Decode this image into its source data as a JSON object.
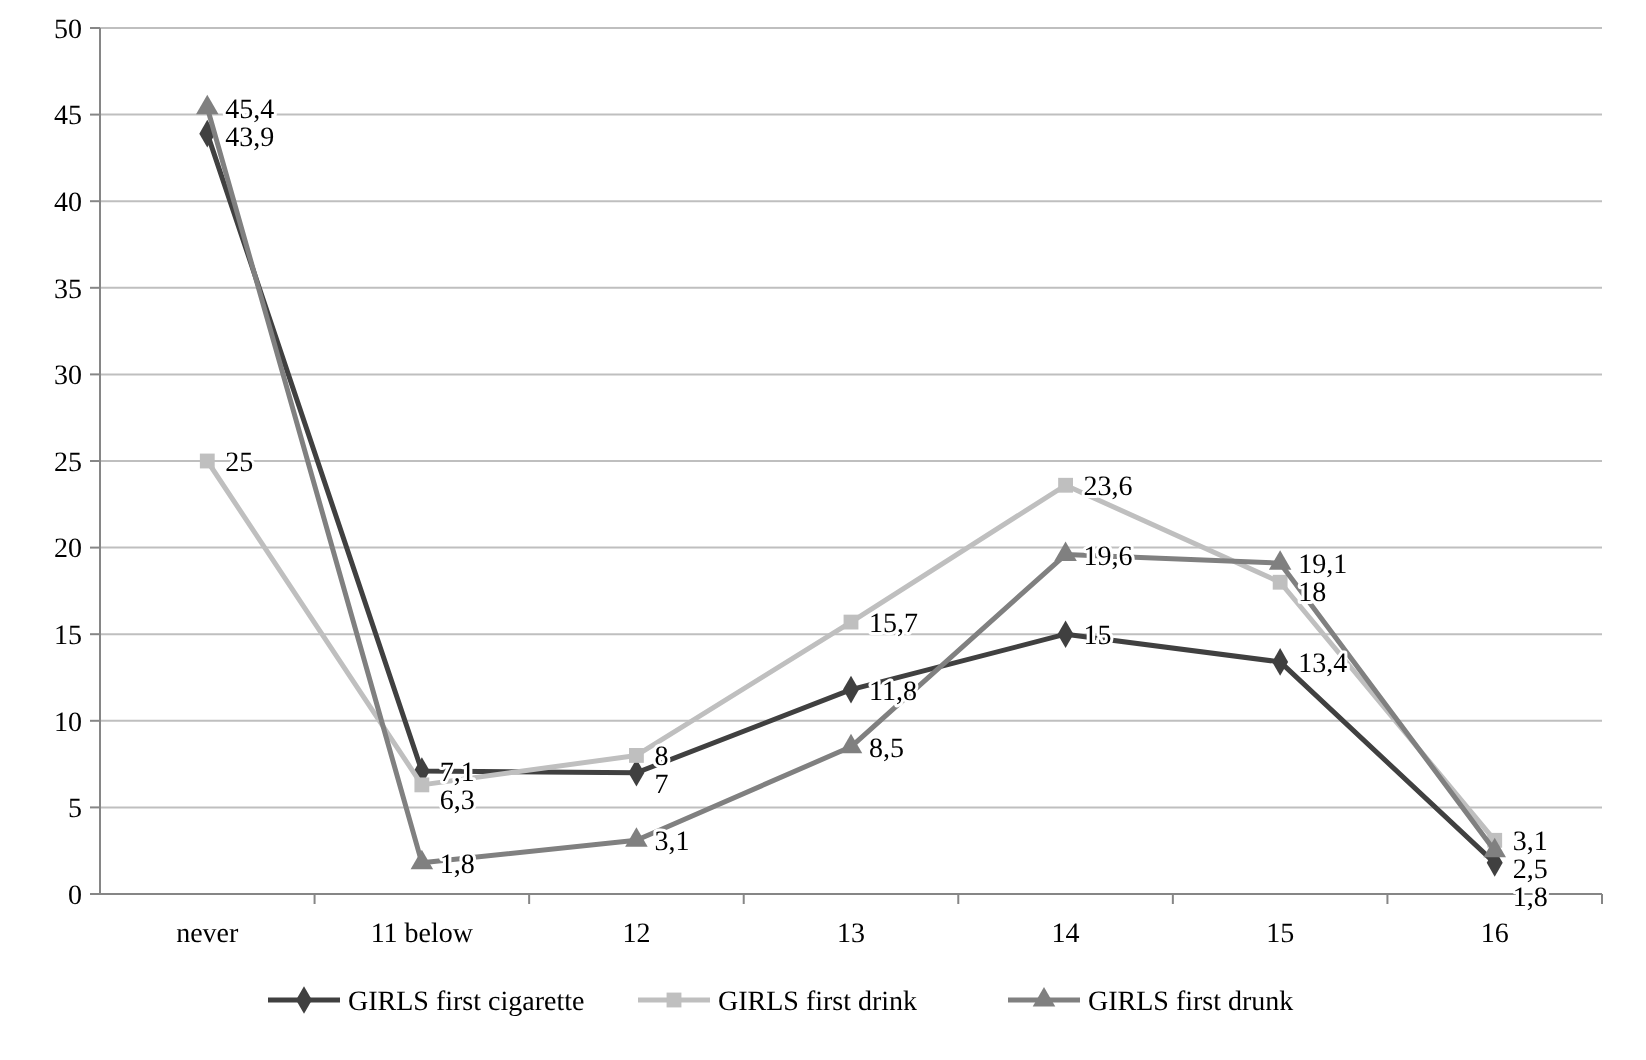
{
  "chart_data": {
    "type": "line",
    "categories": [
      "never",
      "11 below",
      "12",
      "13",
      "14",
      "15",
      "16"
    ],
    "ylim": [
      0,
      50
    ],
    "yticks": [
      0,
      5,
      10,
      15,
      20,
      25,
      30,
      35,
      40,
      45,
      50
    ],
    "grid": "y",
    "legend": "bottom",
    "data_labels": true,
    "series": [
      {
        "name": "GIRLS first cigarette",
        "color": "#404040",
        "marker": "diamond",
        "values": [
          43.9,
          7.1,
          7,
          11.8,
          15,
          13.4,
          1.8
        ],
        "value_labels": [
          "43,9",
          "7,1",
          "7",
          "11,8",
          "15",
          "13,4",
          "1,8"
        ]
      },
      {
        "name": "GIRLS first drink",
        "color": "#bfbfbf",
        "marker": "square",
        "values": [
          25,
          6.3,
          8,
          15.7,
          23.6,
          18,
          3.1
        ],
        "value_labels": [
          "25",
          "6,3",
          "8",
          "15,7",
          "23,6",
          "18",
          "3,1"
        ]
      },
      {
        "name": "GIRLS first drunk",
        "color": "#808080",
        "marker": "triangle",
        "values": [
          45.4,
          1.8,
          3.1,
          8.5,
          19.6,
          19.1,
          2.5
        ],
        "value_labels": [
          "45,4",
          "1,8",
          "3,1",
          "8,5",
          "19,6",
          "19,1",
          "2,5"
        ]
      }
    ]
  }
}
